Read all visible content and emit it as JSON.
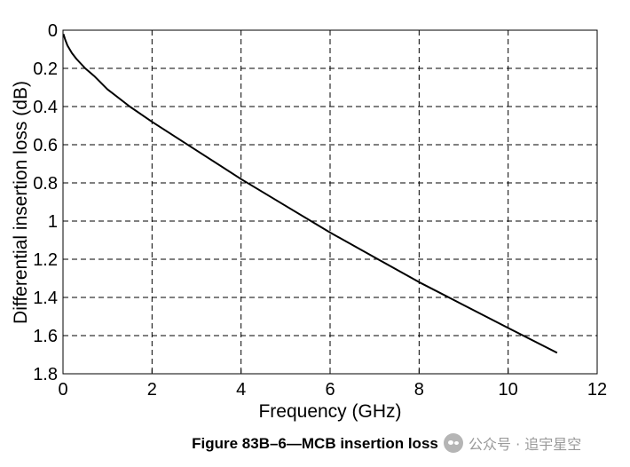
{
  "chart_data": {
    "type": "line",
    "title": "",
    "xlabel": "Frequency (GHz)",
    "ylabel": "Differential insertion loss (dB)",
    "xlim": [
      0,
      12
    ],
    "ylim": [
      0,
      1.8
    ],
    "y_inverted": true,
    "grid": true,
    "grid_style": "dashed",
    "xticks": [
      "0",
      "2",
      "4",
      "6",
      "8",
      "10",
      "12"
    ],
    "yticks": [
      "0",
      "0.2",
      "0.4",
      "0.6",
      "0.8",
      "1",
      "1.2",
      "1.4",
      "1.6",
      "1.8"
    ],
    "series": [
      {
        "color": "#000000",
        "x": [
          0.01,
          0.05,
          0.1,
          0.2,
          0.3,
          0.5,
          0.7,
          1.0,
          1.5,
          2.0,
          2.5,
          3.0,
          4.0,
          5.0,
          6.0,
          7.0,
          8.0,
          9.0,
          10.0,
          11.1
        ],
        "y": [
          0.02,
          0.05,
          0.08,
          0.12,
          0.15,
          0.2,
          0.24,
          0.31,
          0.4,
          0.48,
          0.555,
          0.63,
          0.78,
          0.92,
          1.06,
          1.19,
          1.32,
          1.44,
          1.56,
          1.69
        ]
      }
    ]
  },
  "caption": "Figure 83B–6—MCB insertion loss",
  "watermark": "公众号 · 追宇星空"
}
